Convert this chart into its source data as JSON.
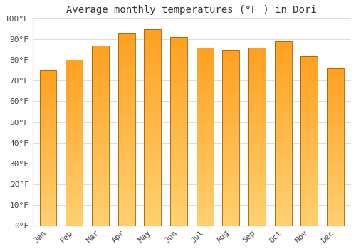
{
  "title": "Average monthly temperatures (°F ) in Dori",
  "months": [
    "Jan",
    "Feb",
    "Mar",
    "Apr",
    "May",
    "Jun",
    "Jul",
    "Aug",
    "Sep",
    "Oct",
    "Nov",
    "Dec"
  ],
  "values": [
    75,
    80,
    87,
    93,
    95,
    91,
    86,
    85,
    86,
    89,
    82,
    76
  ],
  "bar_color_bottom": "#FFD070",
  "bar_color_top": "#FFA020",
  "bar_edge_color": "#A06000",
  "ylim": [
    0,
    100
  ],
  "ytick_step": 10,
  "background_color": "#FFFFFF",
  "plot_bg_color": "#FFFFFF",
  "grid_color": "#DDDDDD",
  "title_fontsize": 10,
  "tick_fontsize": 8,
  "font_family": "monospace"
}
